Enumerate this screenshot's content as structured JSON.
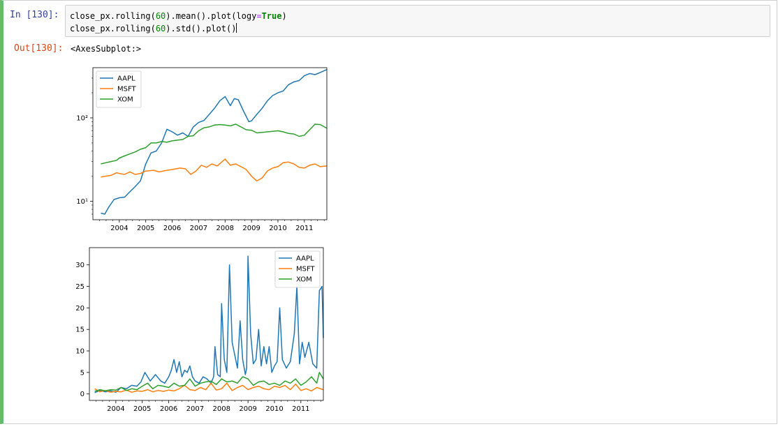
{
  "cell": {
    "in_prompt": "In  [130]:",
    "out_prompt": "Out[130]:",
    "code": {
      "line1": {
        "a": "close_px.rolling(",
        "b": "60",
        "c": ").mean().plot(logy",
        "d": "=",
        "e": "True",
        "f": ")"
      },
      "line2": {
        "a": "close_px.rolling(",
        "b": "60",
        "c": ").std().plot()"
      }
    },
    "output_text": "<AxesSubplot:>"
  },
  "colors": {
    "AAPL": "#1f77b4",
    "MSFT": "#ff7f0e",
    "XOM": "#2ca02c"
  },
  "chart_data": [
    {
      "type": "line",
      "title": "",
      "yscale": "log",
      "ylim": [
        6,
        400
      ],
      "xlim": [
        2003.0,
        2011.85
      ],
      "x_ticks": [
        "2004",
        "2005",
        "2006",
        "2007",
        "2008",
        "2009",
        "2010",
        "2011"
      ],
      "y_ticks": [
        "10¹",
        "10²"
      ],
      "legend": "upper left",
      "series": [
        {
          "name": "AAPL",
          "x": [
            2003.3,
            2003.45,
            2003.6,
            2003.8,
            2004.0,
            2004.2,
            2004.4,
            2004.6,
            2004.8,
            2005.0,
            2005.2,
            2005.4,
            2005.6,
            2005.8,
            2006.0,
            2006.2,
            2006.4,
            2006.6,
            2006.8,
            2007.0,
            2007.2,
            2007.4,
            2007.6,
            2007.8,
            2008.0,
            2008.2,
            2008.35,
            2008.5,
            2008.7,
            2008.9,
            2009.0,
            2009.2,
            2009.4,
            2009.6,
            2009.8,
            2010.0,
            2010.2,
            2010.4,
            2010.6,
            2010.8,
            2011.0,
            2011.2,
            2011.4,
            2011.6,
            2011.85
          ],
          "values": [
            7.2,
            7.0,
            8.5,
            10.5,
            11.0,
            11.2,
            13.0,
            15.0,
            17.5,
            28.0,
            38.0,
            40.0,
            50.0,
            73.0,
            68.0,
            62.0,
            66.0,
            60.0,
            78.0,
            88.0,
            93.0,
            110.0,
            130.0,
            160.0,
            180.0,
            140.0,
            170.0,
            165.0,
            120.0,
            90.0,
            92.0,
            110.0,
            130.0,
            160.0,
            185.0,
            200.0,
            210.0,
            250.0,
            270.0,
            280.0,
            320.0,
            340.0,
            330.0,
            350.0,
            380.0
          ]
        },
        {
          "name": "MSFT",
          "x": [
            2003.3,
            2003.5,
            2003.7,
            2003.9,
            2004.0,
            2004.2,
            2004.4,
            2004.6,
            2004.8,
            2005.0,
            2005.3,
            2005.5,
            2005.8,
            2006.0,
            2006.3,
            2006.5,
            2006.7,
            2006.9,
            2007.1,
            2007.3,
            2007.5,
            2007.7,
            2008.0,
            2008.2,
            2008.4,
            2008.6,
            2008.8,
            2009.0,
            2009.2,
            2009.4,
            2009.6,
            2009.8,
            2010.0,
            2010.2,
            2010.4,
            2010.6,
            2010.8,
            2011.0,
            2011.2,
            2011.4,
            2011.6,
            2011.85
          ],
          "values": [
            19.5,
            20.0,
            20.5,
            22.0,
            21.5,
            21.0,
            22.5,
            21.0,
            21.5,
            23.0,
            23.5,
            22.5,
            23.5,
            24.0,
            25.0,
            24.5,
            21.0,
            23.0,
            27.0,
            25.5,
            28.0,
            26.5,
            32.0,
            27.0,
            28.0,
            26.0,
            24.0,
            20.0,
            17.5,
            19.0,
            23.0,
            25.0,
            26.0,
            29.0,
            29.5,
            28.0,
            25.5,
            25.0,
            27.0,
            28.0,
            26.0,
            26.5
          ]
        },
        {
          "name": "XOM",
          "x": [
            2003.3,
            2003.5,
            2003.7,
            2003.9,
            2004.0,
            2004.2,
            2004.4,
            2004.6,
            2004.8,
            2005.0,
            2005.2,
            2005.4,
            2005.6,
            2005.8,
            2006.0,
            2006.2,
            2006.4,
            2006.6,
            2006.8,
            2007.0,
            2007.2,
            2007.4,
            2007.6,
            2007.8,
            2008.0,
            2008.2,
            2008.4,
            2008.6,
            2008.8,
            2009.0,
            2009.2,
            2009.4,
            2009.6,
            2009.8,
            2010.0,
            2010.2,
            2010.4,
            2010.6,
            2010.8,
            2011.0,
            2011.2,
            2011.4,
            2011.6,
            2011.85
          ],
          "values": [
            28.0,
            29.0,
            30.0,
            31.0,
            33.0,
            35.0,
            37.0,
            39.0,
            42.0,
            44.0,
            50.0,
            50.0,
            52.0,
            51.0,
            53.0,
            54.0,
            55.0,
            60.0,
            61.0,
            70.0,
            76.0,
            78.0,
            82.0,
            83.0,
            82.0,
            80.0,
            84.0,
            78.0,
            72.0,
            71.0,
            66.0,
            67.0,
            68.0,
            69.0,
            70.0,
            68.0,
            65.0,
            64.0,
            60.0,
            62.0,
            72.0,
            84.0,
            83.0,
            75.0
          ]
        }
      ]
    },
    {
      "type": "line",
      "title": "",
      "ylim": [
        -1.5,
        34
      ],
      "xlim": [
        2003.0,
        2011.85
      ],
      "x_ticks": [
        "2004",
        "2005",
        "2006",
        "2007",
        "2008",
        "2009",
        "2010",
        "2011"
      ],
      "y_ticks": [
        "0",
        "5",
        "10",
        "15",
        "20",
        "25",
        "30"
      ],
      "legend": "upper right",
      "series": [
        {
          "name": "AAPL",
          "x": [
            2003.2,
            2003.4,
            2003.6,
            2003.8,
            2004.0,
            2004.2,
            2004.4,
            2004.6,
            2004.8,
            2004.95,
            2005.1,
            2005.3,
            2005.5,
            2005.7,
            2005.85,
            2006.0,
            2006.1,
            2006.2,
            2006.3,
            2006.4,
            2006.5,
            2006.6,
            2006.7,
            2006.8,
            2006.9,
            2007.0,
            2007.15,
            2007.3,
            2007.45,
            2007.6,
            2007.7,
            2007.75,
            2007.85,
            2007.95,
            2008.0,
            2008.1,
            2008.2,
            2008.3,
            2008.4,
            2008.5,
            2008.6,
            2008.7,
            2008.8,
            2008.9,
            2008.95,
            2009.0,
            2009.1,
            2009.2,
            2009.3,
            2009.4,
            2009.5,
            2009.6,
            2009.7,
            2009.8,
            2009.9,
            2010.0,
            2010.1,
            2010.2,
            2010.3,
            2010.45,
            2010.6,
            2010.75,
            2010.85,
            2010.95,
            2011.05,
            2011.15,
            2011.3,
            2011.45,
            2011.6,
            2011.7,
            2011.8,
            2011.85
          ],
          "values": [
            0.3,
            0.8,
            0.5,
            0.7,
            0.4,
            1.5,
            1.2,
            2.0,
            1.8,
            2.8,
            5.0,
            3.0,
            4.5,
            3.0,
            2.5,
            4.0,
            5.5,
            8.0,
            5.0,
            7.5,
            4.0,
            5.5,
            5.0,
            6.5,
            4.0,
            3.0,
            2.5,
            4.0,
            3.5,
            2.5,
            4.0,
            11.0,
            4.5,
            4.0,
            21.0,
            8.0,
            5.0,
            30.0,
            12.0,
            9.0,
            6.0,
            17.0,
            8.0,
            4.5,
            6.0,
            32.0,
            14.0,
            7.0,
            8.0,
            15.0,
            6.5,
            11.0,
            7.0,
            11.0,
            5.0,
            6.5,
            7.5,
            20.0,
            8.0,
            6.0,
            7.5,
            14.0,
            25.0,
            7.0,
            12.0,
            8.5,
            12.0,
            7.0,
            6.0,
            24.0,
            25.0,
            13.0
          ]
        },
        {
          "name": "MSFT",
          "x": [
            2003.2,
            2003.4,
            2003.6,
            2003.8,
            2004.0,
            2004.2,
            2004.4,
            2004.6,
            2004.8,
            2005.0,
            2005.2,
            2005.4,
            2005.6,
            2005.8,
            2006.0,
            2006.2,
            2006.4,
            2006.6,
            2006.8,
            2007.0,
            2007.2,
            2007.4,
            2007.6,
            2007.8,
            2008.0,
            2008.2,
            2008.4,
            2008.6,
            2008.8,
            2009.0,
            2009.2,
            2009.4,
            2009.6,
            2009.8,
            2010.0,
            2010.2,
            2010.4,
            2010.6,
            2010.8,
            2011.0,
            2011.2,
            2011.4,
            2011.6,
            2011.85
          ],
          "values": [
            1.2,
            0.5,
            0.8,
            0.4,
            0.6,
            0.5,
            0.9,
            0.4,
            0.7,
            0.6,
            1.0,
            0.5,
            0.8,
            0.6,
            0.9,
            0.7,
            1.2,
            2.0,
            1.0,
            0.8,
            1.5,
            1.0,
            2.5,
            0.9,
            1.2,
            2.5,
            0.8,
            1.5,
            2.0,
            1.0,
            1.5,
            1.8,
            1.2,
            1.0,
            1.8,
            1.5,
            2.0,
            1.0,
            2.3,
            0.8,
            1.2,
            0.7,
            1.5,
            1.0
          ]
        },
        {
          "name": "XOM",
          "x": [
            2003.2,
            2003.4,
            2003.6,
            2003.8,
            2004.0,
            2004.2,
            2004.4,
            2004.6,
            2004.8,
            2005.0,
            2005.2,
            2005.4,
            2005.6,
            2005.8,
            2006.0,
            2006.2,
            2006.4,
            2006.6,
            2006.8,
            2007.0,
            2007.2,
            2007.4,
            2007.6,
            2007.8,
            2008.0,
            2008.2,
            2008.4,
            2008.6,
            2008.8,
            2009.0,
            2009.2,
            2009.4,
            2009.6,
            2009.8,
            2010.0,
            2010.2,
            2010.4,
            2010.6,
            2010.8,
            2011.0,
            2011.2,
            2011.4,
            2011.6,
            2011.7,
            2011.85
          ],
          "values": [
            0.6,
            1.0,
            0.7,
            1.0,
            0.9,
            1.5,
            0.8,
            1.2,
            1.0,
            1.8,
            2.5,
            1.2,
            2.0,
            1.8,
            1.5,
            2.5,
            1.8,
            2.0,
            3.5,
            1.8,
            2.5,
            2.8,
            3.0,
            2.2,
            3.5,
            2.8,
            3.0,
            2.5,
            4.0,
            3.5,
            2.0,
            2.8,
            3.0,
            2.2,
            2.5,
            2.0,
            3.0,
            2.5,
            3.5,
            2.0,
            2.8,
            4.0,
            2.5,
            5.0,
            3.5
          ]
        }
      ]
    }
  ]
}
